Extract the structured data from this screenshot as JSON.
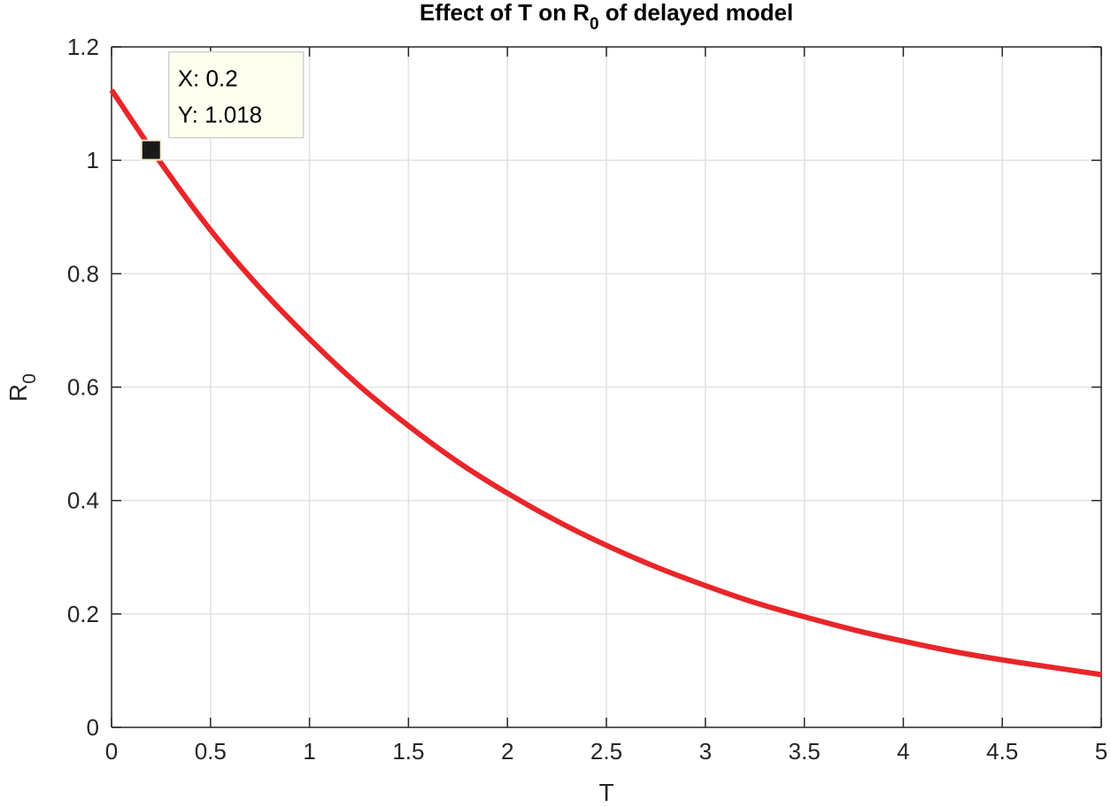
{
  "chart_data": {
    "type": "line",
    "title": {
      "prefix": "Effect of T on R",
      "subscript": "0",
      "suffix": " of delayed model"
    },
    "xlabel": "T",
    "ylabel": {
      "main": "R",
      "subscript": "0"
    },
    "xlim": [
      0,
      5
    ],
    "ylim": [
      0,
      1.2
    ],
    "grid": true,
    "x_ticks": [
      0,
      0.5,
      1,
      1.5,
      2,
      2.5,
      3,
      3.5,
      4,
      4.5,
      5
    ],
    "x_tick_labels": [
      "0",
      "0.5",
      "1",
      "1.5",
      "2",
      "2.5",
      "3",
      "3.5",
      "4",
      "4.5",
      "5"
    ],
    "y_ticks": [
      0,
      0.2,
      0.4,
      0.6,
      0.8,
      1,
      1.2
    ],
    "y_tick_labels": [
      "0",
      "0.2",
      "0.4",
      "0.6",
      "0.8",
      "1",
      "1.2"
    ],
    "series": [
      {
        "name": "R0",
        "color": "#e8262a",
        "x": [
          0,
          0.25,
          0.5,
          0.75,
          1,
          1.25,
          1.5,
          1.75,
          2,
          2.25,
          2.5,
          2.75,
          3,
          3.25,
          3.5,
          3.75,
          4,
          4.25,
          4.5,
          4.75,
          5
        ],
        "y": [
          1.124,
          0.995,
          0.877,
          0.775,
          0.685,
          0.603,
          0.532,
          0.468,
          0.413,
          0.364,
          0.321,
          0.283,
          0.25,
          0.22,
          0.195,
          0.172,
          0.152,
          0.134,
          0.119,
          0.106,
          0.093
        ]
      }
    ],
    "datatip": {
      "x": 0.2,
      "y": 1.018,
      "x_label": "X: 0.2",
      "y_label": "Y: 1.018"
    }
  }
}
